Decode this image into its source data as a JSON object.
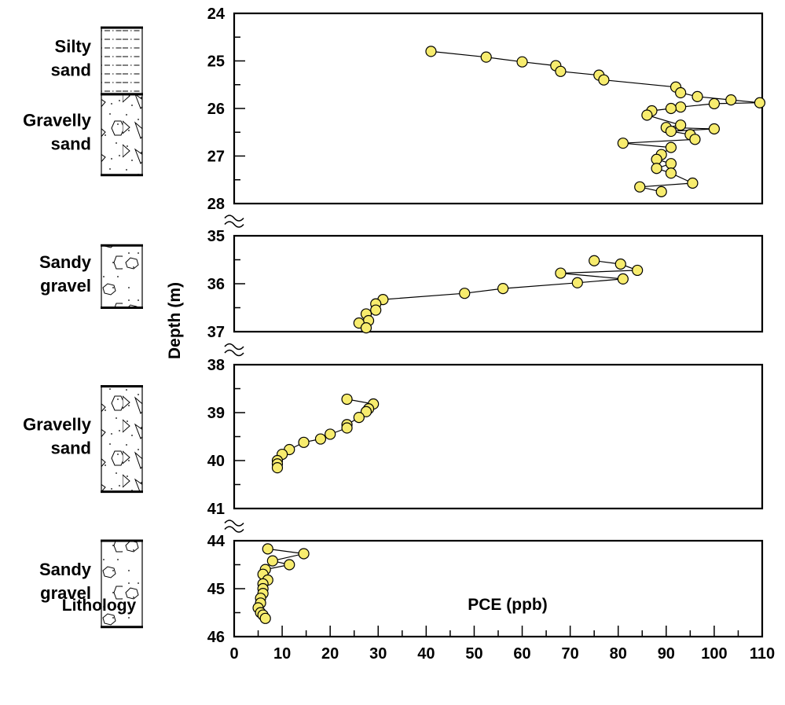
{
  "chart_data": {
    "type": "line",
    "xlabel": "PCE (ppb)",
    "ylabel": "Depth (m)",
    "lithology_title": "Lithology",
    "xlim": [
      0,
      110
    ],
    "xticks": [
      0,
      10,
      20,
      30,
      40,
      50,
      60,
      70,
      80,
      90,
      100,
      110
    ],
    "marker_color": "#f7ec6e",
    "panels": [
      {
        "ylim": [
          24,
          28
        ],
        "yticks": [
          24,
          25,
          26,
          27,
          28
        ],
        "lithology": [
          {
            "lines": [
              "Silty",
              "sand"
            ],
            "pattern": "silty-sand",
            "depth": [
              24.3,
              25.7
            ]
          },
          {
            "lines": [
              "Gravelly",
              "sand"
            ],
            "pattern": "gravelly-sand",
            "depth": [
              25.7,
              27.4
            ]
          }
        ],
        "points": [
          [
            41,
            24.8
          ],
          [
            52.5,
            24.92
          ],
          [
            60,
            25.02
          ],
          [
            67,
            25.1
          ],
          [
            68,
            25.22
          ],
          [
            76,
            25.3
          ],
          [
            77,
            25.4
          ],
          [
            92,
            25.55
          ],
          [
            93,
            25.67
          ],
          [
            96.5,
            25.75
          ],
          [
            103.5,
            25.82
          ],
          [
            109.5,
            25.88
          ],
          [
            100,
            25.9
          ],
          [
            93,
            25.97
          ],
          [
            91,
            26.0
          ],
          [
            87,
            26.05
          ],
          [
            86,
            26.14
          ],
          [
            93,
            26.35
          ],
          [
            90,
            26.4
          ],
          [
            100,
            26.43
          ],
          [
            91,
            26.48
          ],
          [
            95,
            26.55
          ],
          [
            96,
            26.65
          ],
          [
            81,
            26.73
          ],
          [
            91,
            26.82
          ],
          [
            89,
            26.97
          ],
          [
            88,
            27.07
          ],
          [
            91,
            27.16
          ],
          [
            88,
            27.26
          ],
          [
            91,
            27.36
          ],
          [
            95.5,
            27.57
          ],
          [
            84.5,
            27.65
          ],
          [
            89,
            27.75
          ]
        ]
      },
      {
        "ylim": [
          35,
          37
        ],
        "yticks": [
          35,
          36,
          37
        ],
        "lithology": [
          {
            "lines": [
              "Sandy",
              "gravel"
            ],
            "pattern": "sandy-gravel",
            "depth": [
              35.2,
              36.5
            ]
          }
        ],
        "points": [
          [
            75,
            35.52
          ],
          [
            80.5,
            35.59
          ],
          [
            84,
            35.72
          ],
          [
            68,
            35.78
          ],
          [
            81,
            35.9
          ],
          [
            71.5,
            35.98
          ],
          [
            56,
            36.1
          ],
          [
            48,
            36.2
          ],
          [
            31,
            36.33
          ],
          [
            29.5,
            36.42
          ],
          [
            29.5,
            36.55
          ],
          [
            27.5,
            36.63
          ],
          [
            28,
            36.77
          ],
          [
            26,
            36.82
          ],
          [
            27.5,
            36.92
          ]
        ]
      },
      {
        "ylim": [
          38,
          41
        ],
        "yticks": [
          38,
          39,
          40,
          41
        ],
        "lithology": [
          {
            "lines": [
              "Gravelly",
              "sand"
            ],
            "pattern": "gravelly-sand",
            "depth": [
              38.45,
              40.65
            ]
          }
        ],
        "points": [
          [
            23.5,
            38.72
          ],
          [
            29,
            38.82
          ],
          [
            28,
            38.92
          ],
          [
            27.5,
            38.98
          ],
          [
            26,
            39.1
          ],
          [
            23.5,
            39.25
          ],
          [
            23.5,
            39.32
          ],
          [
            20,
            39.45
          ],
          [
            18,
            39.55
          ],
          [
            14.5,
            39.62
          ],
          [
            11.5,
            39.77
          ],
          [
            10,
            39.87
          ],
          [
            9,
            40.0
          ],
          [
            9,
            40.07
          ],
          [
            9,
            40.15
          ]
        ]
      },
      {
        "ylim": [
          44,
          46
        ],
        "yticks": [
          44,
          45,
          46
        ],
        "lithology": [
          {
            "lines": [
              "Sandy",
              "gravel"
            ],
            "pattern": "sandy-gravel",
            "depth": [
              44.0,
              45.8
            ]
          }
        ],
        "points": [
          [
            7,
            44.17
          ],
          [
            14.5,
            44.27
          ],
          [
            8,
            44.42
          ],
          [
            11.5,
            44.5
          ],
          [
            6.5,
            44.6
          ],
          [
            6,
            44.7
          ],
          [
            7,
            44.82
          ],
          [
            6,
            44.9
          ],
          [
            6,
            45.0
          ],
          [
            6,
            45.1
          ],
          [
            5.5,
            45.2
          ],
          [
            5.5,
            45.3
          ],
          [
            5,
            45.4
          ],
          [
            5.5,
            45.5
          ],
          [
            6,
            45.55
          ],
          [
            6.5,
            45.62
          ]
        ]
      }
    ]
  }
}
